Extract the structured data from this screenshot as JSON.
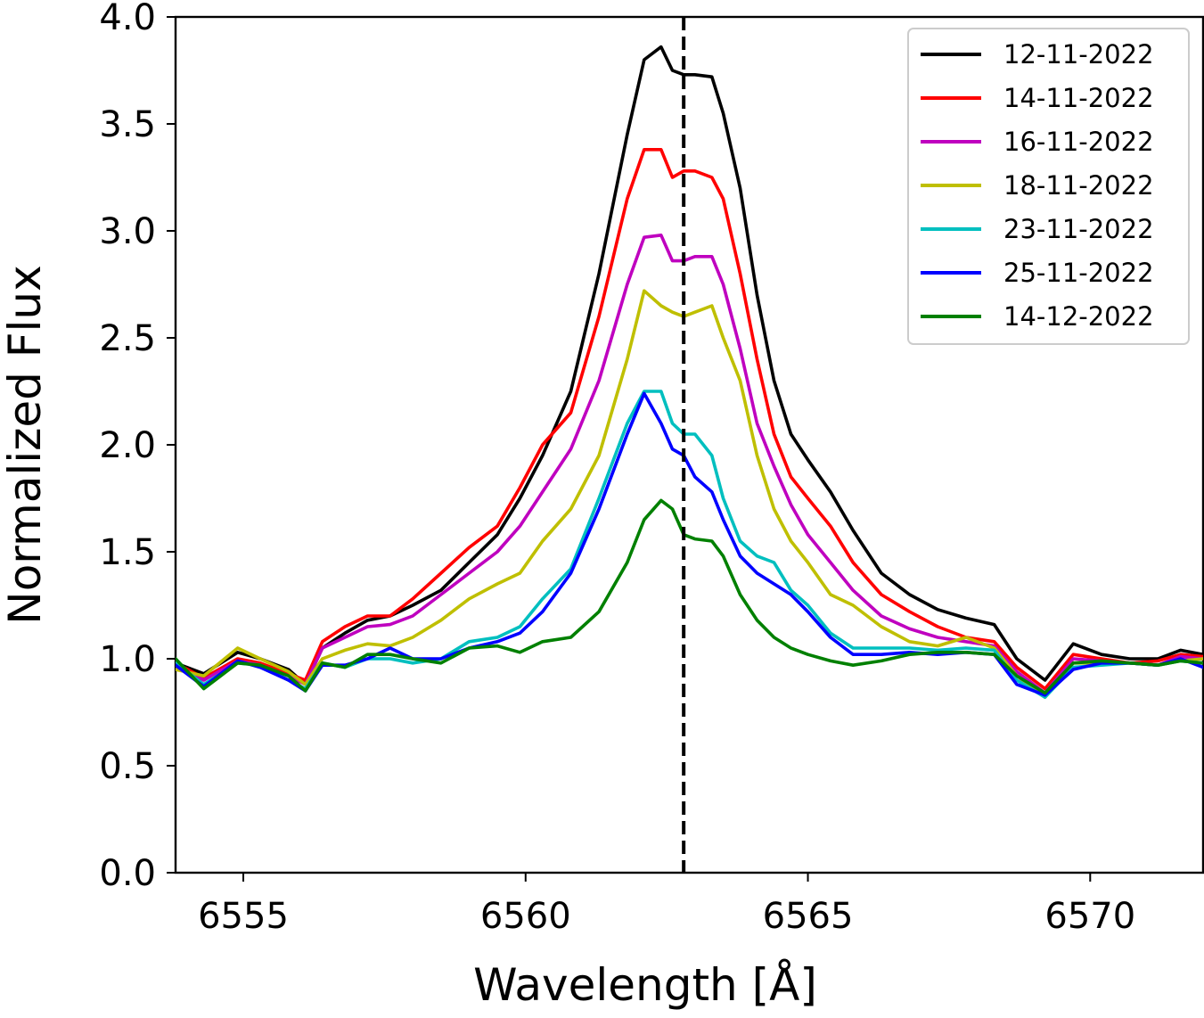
{
  "chart_data": {
    "type": "line",
    "title": "",
    "xlabel": "Wavelength [Å]",
    "ylabel": "Normalized Flux",
    "xlim": [
      6553.8,
      6572.0
    ],
    "ylim": [
      0.0,
      4.0
    ],
    "xticks": [
      6555,
      6560,
      6565,
      6570
    ],
    "yticks": [
      0.0,
      0.5,
      1.0,
      1.5,
      2.0,
      2.5,
      3.0,
      3.5,
      4.0
    ],
    "xtick_labels": [
      "6555",
      "6560",
      "6565",
      "6570"
    ],
    "ytick_labels": [
      "0.0",
      "0.5",
      "1.0",
      "1.5",
      "2.0",
      "2.5",
      "3.0",
      "3.5",
      "4.0"
    ],
    "grid": false,
    "legend_position": "top-right",
    "reference_line": {
      "x": 6562.8,
      "style": "dashed",
      "color": "#000000"
    },
    "series": [
      {
        "name": "12-11-2022",
        "color": "#000000",
        "x": [
          6553.8,
          6554.3,
          6554.9,
          6555.3,
          6555.8,
          6556.1,
          6556.4,
          6556.8,
          6557.2,
          6557.6,
          6558.0,
          6558.5,
          6559.0,
          6559.5,
          6559.9,
          6560.3,
          6560.8,
          6561.3,
          6561.8,
          6562.1,
          6562.4,
          6562.6,
          6562.8,
          6563.0,
          6563.3,
          6563.5,
          6563.8,
          6564.1,
          6564.4,
          6564.7,
          6565.0,
          6565.4,
          6565.8,
          6566.3,
          6566.8,
          6567.3,
          6567.8,
          6568.3,
          6568.7,
          6569.2,
          6569.7,
          6570.2,
          6570.7,
          6571.2,
          6571.6,
          6572.0
        ],
        "values": [
          0.98,
          0.93,
          1.03,
          1.0,
          0.95,
          0.88,
          1.05,
          1.12,
          1.18,
          1.2,
          1.25,
          1.32,
          1.45,
          1.58,
          1.75,
          1.95,
          2.25,
          2.8,
          3.45,
          3.8,
          3.86,
          3.75,
          3.73,
          3.73,
          3.72,
          3.55,
          3.2,
          2.7,
          2.3,
          2.05,
          1.93,
          1.78,
          1.6,
          1.4,
          1.3,
          1.23,
          1.19,
          1.16,
          1.0,
          0.9,
          1.07,
          1.02,
          1.0,
          1.0,
          1.04,
          1.02
        ]
      },
      {
        "name": "14-11-2022",
        "color": "#ff0000",
        "x": [
          6553.8,
          6554.3,
          6554.9,
          6555.3,
          6555.8,
          6556.1,
          6556.4,
          6556.8,
          6557.2,
          6557.6,
          6558.0,
          6558.5,
          6559.0,
          6559.5,
          6559.9,
          6560.3,
          6560.8,
          6561.3,
          6561.8,
          6562.1,
          6562.4,
          6562.6,
          6562.8,
          6563.0,
          6563.3,
          6563.5,
          6563.8,
          6564.1,
          6564.4,
          6564.7,
          6565.0,
          6565.4,
          6565.8,
          6566.3,
          6566.8,
          6567.3,
          6567.8,
          6568.3,
          6568.7,
          6569.2,
          6569.7,
          6570.2,
          6570.7,
          6571.2,
          6571.6,
          6572.0
        ],
        "values": [
          0.98,
          0.91,
          1.0,
          0.98,
          0.93,
          0.9,
          1.08,
          1.15,
          1.2,
          1.2,
          1.28,
          1.4,
          1.52,
          1.62,
          1.8,
          2.0,
          2.15,
          2.6,
          3.15,
          3.38,
          3.38,
          3.25,
          3.28,
          3.28,
          3.25,
          3.15,
          2.8,
          2.4,
          2.05,
          1.85,
          1.75,
          1.62,
          1.45,
          1.3,
          1.22,
          1.15,
          1.1,
          1.08,
          0.96,
          0.86,
          1.02,
          1.0,
          0.98,
          0.99,
          1.02,
          1.01
        ]
      },
      {
        "name": "16-11-2022",
        "color": "#bf00bf",
        "x": [
          6553.8,
          6554.3,
          6554.9,
          6555.3,
          6555.8,
          6556.1,
          6556.4,
          6556.8,
          6557.2,
          6557.6,
          6558.0,
          6558.5,
          6559.0,
          6559.5,
          6559.9,
          6560.3,
          6560.8,
          6561.3,
          6561.8,
          6562.1,
          6562.4,
          6562.6,
          6562.8,
          6563.0,
          6563.3,
          6563.5,
          6563.8,
          6564.1,
          6564.4,
          6564.7,
          6565.0,
          6565.4,
          6565.8,
          6566.3,
          6566.8,
          6567.3,
          6567.8,
          6568.3,
          6568.7,
          6569.2,
          6569.7,
          6570.2,
          6570.7,
          6571.2,
          6571.6,
          6572.0
        ],
        "values": [
          0.97,
          0.9,
          0.99,
          0.97,
          0.92,
          0.88,
          1.05,
          1.1,
          1.15,
          1.16,
          1.2,
          1.3,
          1.4,
          1.5,
          1.62,
          1.78,
          1.98,
          2.3,
          2.75,
          2.97,
          2.98,
          2.86,
          2.86,
          2.88,
          2.88,
          2.75,
          2.45,
          2.1,
          1.9,
          1.72,
          1.58,
          1.45,
          1.32,
          1.2,
          1.14,
          1.1,
          1.08,
          1.06,
          0.94,
          0.84,
          1.0,
          0.99,
          0.98,
          0.97,
          1.01,
          1.0
        ]
      },
      {
        "name": "18-11-2022",
        "color": "#bfbf00",
        "x": [
          6553.8,
          6554.3,
          6554.9,
          6555.3,
          6555.8,
          6556.1,
          6556.4,
          6556.8,
          6557.2,
          6557.6,
          6558.0,
          6558.5,
          6559.0,
          6559.5,
          6559.9,
          6560.3,
          6560.8,
          6561.3,
          6561.8,
          6562.1,
          6562.4,
          6562.6,
          6562.8,
          6563.0,
          6563.3,
          6563.5,
          6563.8,
          6564.1,
          6564.4,
          6564.7,
          6565.0,
          6565.4,
          6565.8,
          6566.3,
          6566.8,
          6567.3,
          6567.8,
          6568.3,
          6568.7,
          6569.2,
          6569.7,
          6570.2,
          6570.7,
          6571.2,
          6571.6,
          6572.0
        ],
        "values": [
          0.95,
          0.92,
          1.05,
          1.0,
          0.94,
          0.88,
          1.0,
          1.04,
          1.07,
          1.06,
          1.1,
          1.18,
          1.28,
          1.35,
          1.4,
          1.55,
          1.7,
          1.95,
          2.4,
          2.72,
          2.65,
          2.62,
          2.6,
          2.62,
          2.65,
          2.5,
          2.3,
          1.95,
          1.7,
          1.55,
          1.45,
          1.3,
          1.25,
          1.15,
          1.08,
          1.06,
          1.1,
          1.05,
          0.92,
          0.82,
          0.98,
          0.98,
          0.98,
          0.97,
          0.99,
          1.0
        ]
      },
      {
        "name": "23-11-2022",
        "color": "#00bfbf",
        "x": [
          6553.8,
          6554.3,
          6554.9,
          6555.3,
          6555.8,
          6556.1,
          6556.4,
          6556.8,
          6557.2,
          6557.6,
          6558.0,
          6558.5,
          6559.0,
          6559.5,
          6559.9,
          6560.3,
          6560.8,
          6561.3,
          6561.8,
          6562.1,
          6562.4,
          6562.6,
          6562.8,
          6563.0,
          6563.3,
          6563.5,
          6563.8,
          6564.1,
          6564.4,
          6564.7,
          6565.0,
          6565.4,
          6565.8,
          6566.3,
          6566.8,
          6567.3,
          6567.8,
          6568.3,
          6568.7,
          6569.2,
          6569.7,
          6570.2,
          6570.7,
          6571.2,
          6571.6,
          6572.0
        ],
        "values": [
          0.98,
          0.88,
          0.98,
          0.97,
          0.9,
          0.86,
          0.98,
          0.96,
          1.0,
          1.0,
          0.98,
          1.0,
          1.08,
          1.1,
          1.15,
          1.28,
          1.42,
          1.75,
          2.1,
          2.25,
          2.25,
          2.1,
          2.05,
          2.05,
          1.95,
          1.75,
          1.55,
          1.48,
          1.45,
          1.32,
          1.25,
          1.12,
          1.05,
          1.05,
          1.05,
          1.04,
          1.05,
          1.04,
          0.9,
          0.82,
          0.96,
          0.97,
          0.98,
          0.97,
          0.99,
          0.98
        ]
      },
      {
        "name": "25-11-2022",
        "color": "#0000ff",
        "x": [
          6553.8,
          6554.3,
          6554.9,
          6555.3,
          6555.8,
          6556.1,
          6556.4,
          6556.8,
          6557.2,
          6557.6,
          6558.0,
          6558.5,
          6559.0,
          6559.5,
          6559.9,
          6560.3,
          6560.8,
          6561.3,
          6561.8,
          6562.1,
          6562.4,
          6562.6,
          6562.8,
          6563.0,
          6563.3,
          6563.5,
          6563.8,
          6564.1,
          6564.4,
          6564.7,
          6565.0,
          6565.4,
          6565.8,
          6566.3,
          6566.8,
          6567.3,
          6567.8,
          6568.3,
          6568.7,
          6569.2,
          6569.7,
          6570.2,
          6570.7,
          6571.2,
          6571.6,
          6572.0
        ],
        "values": [
          0.97,
          0.87,
          0.99,
          0.96,
          0.9,
          0.85,
          0.97,
          0.97,
          1.0,
          1.05,
          1.0,
          1.0,
          1.05,
          1.08,
          1.12,
          1.22,
          1.4,
          1.7,
          2.05,
          2.24,
          2.1,
          1.98,
          1.95,
          1.85,
          1.78,
          1.65,
          1.48,
          1.4,
          1.35,
          1.3,
          1.22,
          1.1,
          1.02,
          1.02,
          1.03,
          1.02,
          1.03,
          1.02,
          0.88,
          0.83,
          0.95,
          0.98,
          0.98,
          0.97,
          1.0,
          0.96
        ]
      },
      {
        "name": "14-12-2022",
        "color": "#008000",
        "x": [
          6553.8,
          6554.3,
          6554.9,
          6555.3,
          6555.8,
          6556.1,
          6556.4,
          6556.8,
          6557.2,
          6557.6,
          6558.0,
          6558.5,
          6559.0,
          6559.5,
          6559.9,
          6560.3,
          6560.8,
          6561.3,
          6561.8,
          6562.1,
          6562.4,
          6562.6,
          6562.8,
          6563.0,
          6563.3,
          6563.5,
          6563.8,
          6564.1,
          6564.4,
          6564.7,
          6565.0,
          6565.4,
          6565.8,
          6566.3,
          6566.8,
          6567.3,
          6567.8,
          6568.3,
          6568.7,
          6569.2,
          6569.7,
          6570.2,
          6570.7,
          6571.2,
          6571.6,
          6572.0
        ],
        "values": [
          1.0,
          0.86,
          0.98,
          0.97,
          0.92,
          0.85,
          0.98,
          0.96,
          1.02,
          1.02,
          1.0,
          0.98,
          1.05,
          1.06,
          1.03,
          1.08,
          1.1,
          1.22,
          1.45,
          1.65,
          1.74,
          1.7,
          1.58,
          1.56,
          1.55,
          1.48,
          1.3,
          1.18,
          1.1,
          1.05,
          1.02,
          0.99,
          0.97,
          0.99,
          1.02,
          1.03,
          1.03,
          1.02,
          0.92,
          0.84,
          0.98,
          0.99,
          0.98,
          0.97,
          0.99,
          0.98
        ]
      }
    ]
  }
}
